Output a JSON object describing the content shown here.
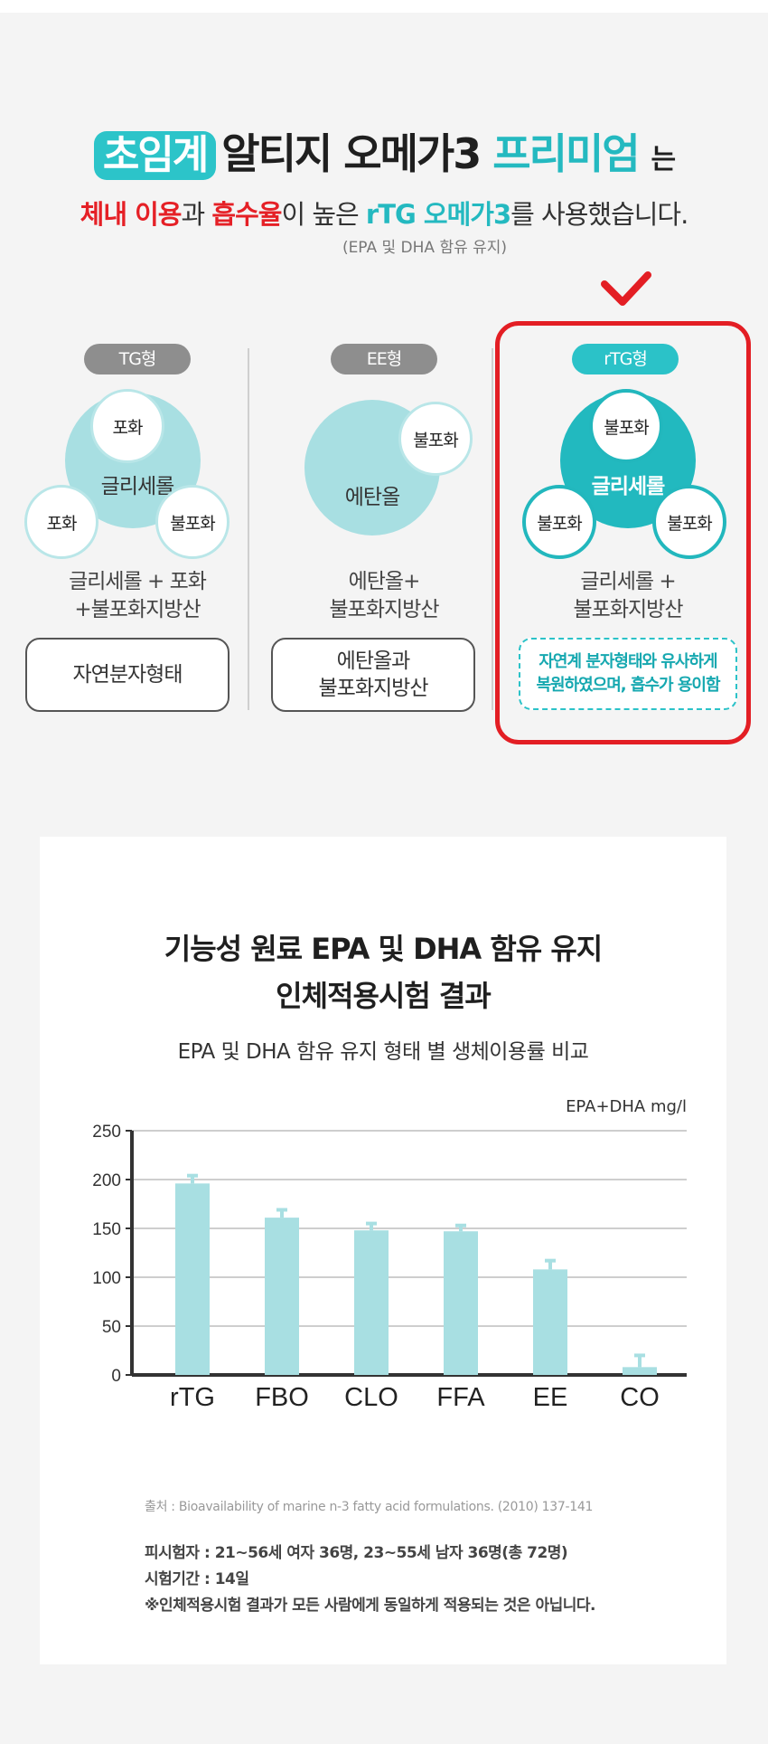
{
  "headline": {
    "highlight": "초임계",
    "main": "알티지 오메가3",
    "accent": "프리미엄",
    "particle": "는",
    "line2_red1": "체내 이용",
    "line2_norm1": "과 ",
    "line2_red2": "흡수율",
    "line2_norm2": "이 높은 ",
    "line2_teal": "rTG 오메가3",
    "line2_norm3": "를 사용했습니다.",
    "line3": "(EPA 및 DHA 함유 유지)"
  },
  "columns": {
    "tg": {
      "tag": "TG형",
      "center": "글리세롤",
      "top": "포화",
      "left": "포화",
      "right": "불포화",
      "desc1": "글리세롤 + 포화",
      "desc2": "+불포화지방산",
      "box": "자연분자형태"
    },
    "ee": {
      "tag": "EE형",
      "center": "에탄올",
      "small": "불포화",
      "desc1": "에탄올+",
      "desc2": "불포화지방산",
      "box1": "에탄올과",
      "box2": "불포화지방산"
    },
    "rtg": {
      "tag": "rTG형",
      "center": "글리세롤",
      "top": "불포화",
      "left": "불포화",
      "right": "불포화",
      "desc1": "글리세롤 +",
      "desc2": "불포화지방산",
      "box1": "자연계 분자형태와 유사하게",
      "box2": "복원하였으며, 흡수가 용이함"
    }
  },
  "colors": {
    "teal": "#2bc2c8",
    "light_teal": "#a8dfe2",
    "red": "#e31e24",
    "bar": "#a8dfe2"
  },
  "panel": {
    "title1": "기능성 원료 EPA 및 DHA 함유 유지",
    "title2": "인체적용시험 결과",
    "subtitle": "EPA 및 DHA 함유 유지 형태 별 생체이용률 비교",
    "unit": "EPA+DHA mg/l",
    "source": "출처 : Bioavailability of marine n-3 fatty acid formulations. (2010) 137-141",
    "note1": "피시험자 : 21~56세 여자 36명, 23~55세 남자 36명(총 72명)",
    "note2": "시험기간 : 14일",
    "note3": "※인체적용시험 결과가 모든 사람에게 동일하게 적용되는 것은 아닙니다."
  },
  "chart_data": {
    "type": "bar",
    "categories": [
      "rTG",
      "FBO",
      "CLO",
      "FFA",
      "EE",
      "CO"
    ],
    "values": [
      196,
      161,
      148,
      147,
      108,
      8
    ],
    "errors": [
      8,
      8,
      7,
      6,
      9,
      12
    ],
    "title": "EPA 및 DHA 함유 유지 형태 별 생체이용률 비교",
    "ylabel": "EPA+DHA mg/l",
    "ylim": [
      0,
      250
    ],
    "yticks": [
      0,
      50,
      100,
      150,
      200,
      250
    ],
    "grid": true,
    "color": "#a8dfe2"
  }
}
